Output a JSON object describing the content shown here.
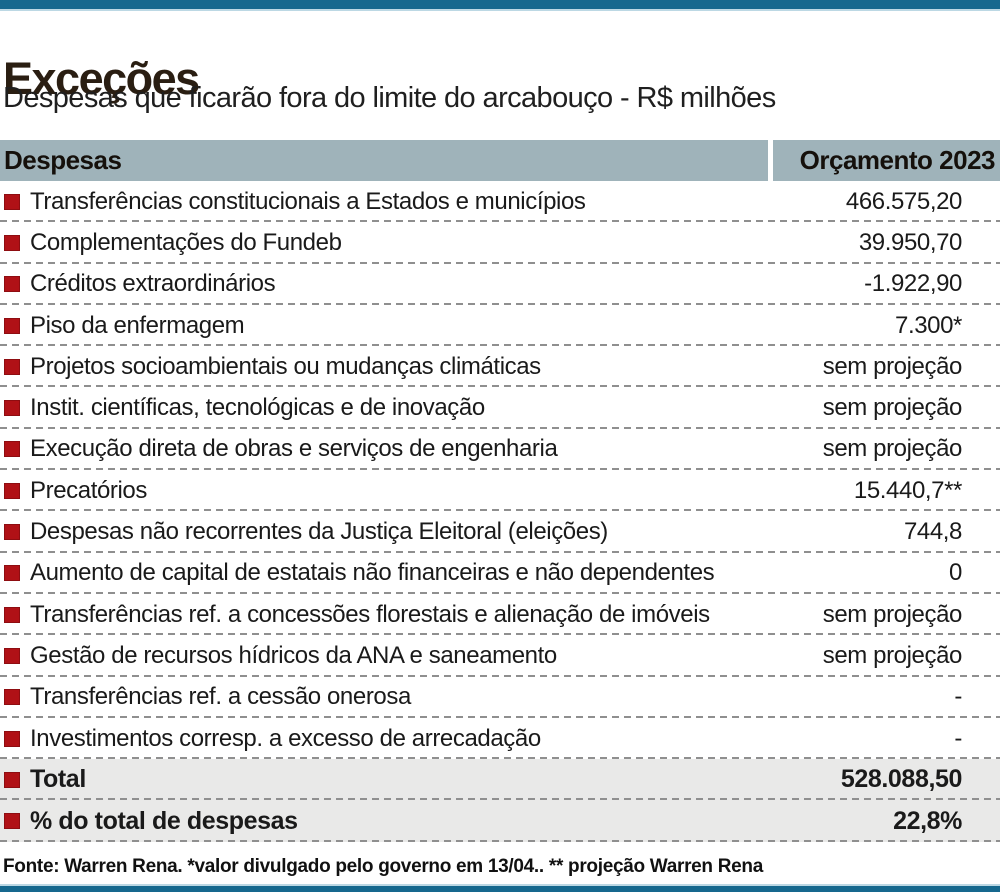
{
  "chart_data": {
    "type": "table",
    "title": "Exceções",
    "subtitle": "Despesas que ficarão fora do limite do arcabouço - R$ milhões",
    "columns": [
      "Despesas",
      "Orçamento 2023"
    ],
    "rows": [
      {
        "label": "Transferências constitucionais a Estados e municípios",
        "value": "466.575,20"
      },
      {
        "label": "Complementações do Fundeb",
        "value": "39.950,70"
      },
      {
        "label": "Créditos extraordinários",
        "value": "-1.922,90"
      },
      {
        "label": "Piso da enfermagem",
        "value": "7.300*"
      },
      {
        "label": "Projetos socioambientais ou mudanças climáticas",
        "value": "sem projeção"
      },
      {
        "label": "Instit. científicas, tecnológicas e de inovação",
        "value": "sem projeção"
      },
      {
        "label": "Execução direta de obras e serviços de engenharia",
        "value": "sem projeção"
      },
      {
        "label": "Precatórios",
        "value": "15.440,7**"
      },
      {
        "label": "Despesas não recorrentes da Justiça Eleitoral (eleições)",
        "value": "744,8"
      },
      {
        "label": "Aumento de capital de estatais não financeiras e não dependentes",
        "value": "0"
      },
      {
        "label": "Transferências ref. a concessões florestais e alienação de imóveis",
        "value": "sem projeção"
      },
      {
        "label": "Gestão de recursos hídricos da ANA e saneamento",
        "value": "sem projeção"
      },
      {
        "label": "Transferências ref. a cessão onerosa",
        "value": "-"
      },
      {
        "label": "Investimentos corresp. a excesso de arrecadação",
        "value": "-"
      }
    ],
    "summary_rows": [
      {
        "label": "Total",
        "value": "528.088,50"
      },
      {
        "label": "% do total de despesas",
        "value": "22,8%"
      }
    ],
    "source_note": "Fonte: Warren Rena. *valor divulgado pelo governo em 13/04.. ** projeção Warren Rena",
    "layout_hints": {
      "grid": "dashed row separators",
      "legend_position": "none"
    }
  },
  "colors": {
    "accent_bar_blue": "#16688e",
    "accent_bar_light_blue": "#bcd8e4",
    "header_background": "#9fb3ba",
    "bullet_red": "#b01116",
    "summary_row_background": "#e9e9e8",
    "dash_gray": "#8f8f8f",
    "title_brown": "#2a1e12"
  }
}
